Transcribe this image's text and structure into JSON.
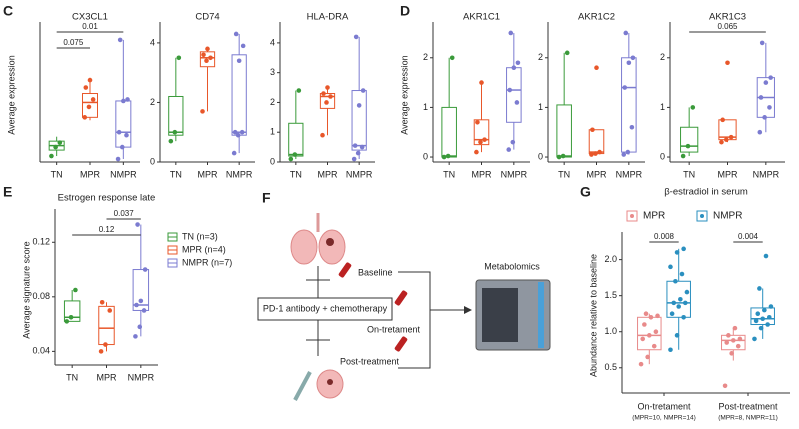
{
  "chart_data": [
    {
      "type": "box",
      "panel": "C",
      "title": "CX3CL1",
      "ylabel": "Average expression",
      "categories": [
        "TN",
        "MPR",
        "NMPR"
      ],
      "colors": [
        "#3a9a3a",
        "#e8572a",
        "#7b7bd0"
      ],
      "ylim": [
        0,
        0.9
      ],
      "boxes": [
        {
          "min": 0.04,
          "q1": 0.08,
          "median": 0.11,
          "q3": 0.14,
          "max": 0.17,
          "points": [
            0.04,
            0.1,
            0.13
          ]
        },
        {
          "min": 0.28,
          "q1": 0.3,
          "median": 0.4,
          "q3": 0.46,
          "max": 0.55,
          "points": [
            0.3,
            0.37,
            0.42,
            0.5,
            0.55
          ]
        },
        {
          "min": 0.02,
          "q1": 0.1,
          "median": 0.2,
          "q3": 0.41,
          "max": 0.82,
          "points": [
            0.02,
            0.1,
            0.18,
            0.2,
            0.41,
            0.42,
            0.82
          ]
        }
      ],
      "brackets": [
        {
          "label": "0.01",
          "from": 0,
          "to": 2
        },
        {
          "label": "0.075",
          "from": 0,
          "to": 1
        }
      ]
    },
    {
      "type": "box",
      "title": "CD74",
      "categories": [
        "TN",
        "MPR",
        "NMPR"
      ],
      "colors": [
        "#3a9a3a",
        "#e8572a",
        "#7b7bd0"
      ],
      "ylim": [
        0,
        4.5
      ],
      "yticks": [
        0,
        2,
        4
      ],
      "boxes": [
        {
          "min": 0.7,
          "q1": 0.9,
          "median": 1.0,
          "q3": 2.2,
          "max": 3.5,
          "points": [
            0.7,
            1.0,
            3.5
          ]
        },
        {
          "min": 1.7,
          "q1": 3.2,
          "median": 3.5,
          "q3": 3.7,
          "max": 3.8,
          "points": [
            1.7,
            3.4,
            3.5,
            3.6,
            3.8
          ]
        },
        {
          "min": 0.3,
          "q1": 0.9,
          "median": 1.0,
          "q3": 3.6,
          "max": 4.3,
          "points": [
            0.3,
            0.9,
            1.0,
            1.0,
            3.4,
            3.9,
            4.3
          ]
        }
      ]
    },
    {
      "type": "box",
      "title": "HLA-DRA",
      "categories": [
        "TN",
        "MPR",
        "NMPR"
      ],
      "colors": [
        "#3a9a3a",
        "#e8572a",
        "#7b7bd0"
      ],
      "ylim": [
        0,
        4.5
      ],
      "yticks": [
        0,
        1,
        2,
        3,
        4
      ],
      "boxes": [
        {
          "min": 0.1,
          "q1": 0.2,
          "median": 0.25,
          "q3": 1.3,
          "max": 2.4,
          "points": [
            0.1,
            0.25,
            2.4
          ]
        },
        {
          "min": 0.9,
          "q1": 1.8,
          "median": 2.2,
          "q3": 2.3,
          "max": 2.5,
          "points": [
            0.9,
            2.0,
            2.2,
            2.3,
            2.5
          ]
        },
        {
          "min": 0.1,
          "q1": 0.4,
          "median": 0.55,
          "q3": 2.4,
          "max": 4.2,
          "points": [
            0.1,
            0.3,
            0.5,
            0.55,
            1.9,
            2.4,
            4.2
          ]
        }
      ]
    },
    {
      "type": "box",
      "panel": "D",
      "title": "AKR1C1",
      "ylabel": "Average expression",
      "categories": [
        "TN",
        "MPR",
        "NMPR"
      ],
      "colors": [
        "#3a9a3a",
        "#e8572a",
        "#7b7bd0"
      ],
      "ylim": [
        -0.1,
        2.6
      ],
      "yticks": [
        0,
        1,
        2
      ],
      "boxes": [
        {
          "min": 0,
          "q1": 0,
          "median": 0.02,
          "q3": 1.0,
          "max": 2.0,
          "points": [
            0,
            0.02,
            2.0
          ]
        },
        {
          "min": 0.1,
          "q1": 0.25,
          "median": 0.35,
          "q3": 0.75,
          "max": 1.5,
          "points": [
            0.1,
            0.3,
            0.35,
            0.7,
            1.5
          ]
        },
        {
          "min": 0.15,
          "q1": 0.7,
          "median": 1.35,
          "q3": 1.8,
          "max": 2.5,
          "points": [
            0.15,
            0.3,
            1.1,
            1.35,
            1.8,
            1.9,
            2.5
          ]
        }
      ]
    },
    {
      "type": "box",
      "title": "AKR1C2",
      "categories": [
        "TN",
        "MPR",
        "NMPR"
      ],
      "colors": [
        "#3a9a3a",
        "#e8572a",
        "#7b7bd0"
      ],
      "ylim": [
        -0.1,
        2.6
      ],
      "yticks": [
        0,
        1,
        2
      ],
      "boxes": [
        {
          "min": 0,
          "q1": 0,
          "median": 0.02,
          "q3": 1.05,
          "max": 2.1,
          "points": [
            0,
            0.02,
            2.1
          ]
        },
        {
          "min": 0.05,
          "q1": 0.07,
          "median": 0.1,
          "q3": 0.55,
          "max": 0.55,
          "points": [
            0.05,
            0.07,
            0.1,
            0.55,
            1.8
          ]
        },
        {
          "min": 0.05,
          "q1": 0.1,
          "median": 1.4,
          "q3": 2.0,
          "max": 2.5,
          "points": [
            0.05,
            0.1,
            0.6,
            1.4,
            1.9,
            2.0,
            2.5
          ]
        }
      ]
    },
    {
      "type": "box",
      "title": "AKR1C3",
      "categories": [
        "TN",
        "MPR",
        "NMPR"
      ],
      "colors": [
        "#3a9a3a",
        "#e8572a",
        "#7b7bd0"
      ],
      "ylim": [
        -0.1,
        2.6
      ],
      "yticks": [
        0,
        1,
        2
      ],
      "boxes": [
        {
          "min": 0.02,
          "q1": 0.1,
          "median": 0.22,
          "q3": 0.6,
          "max": 1.0,
          "points": [
            0.02,
            0.22,
            1.0
          ]
        },
        {
          "min": 0.3,
          "q1": 0.35,
          "median": 0.4,
          "q3": 0.75,
          "max": 0.75,
          "points": [
            0.3,
            0.35,
            0.4,
            0.75,
            1.9
          ]
        },
        {
          "min": 0.5,
          "q1": 0.8,
          "median": 1.2,
          "q3": 1.6,
          "max": 2.3,
          "points": [
            0.5,
            0.8,
            1.0,
            1.2,
            1.5,
            1.6,
            2.3
          ]
        }
      ],
      "brackets": [
        {
          "label": "0.065",
          "from": 0,
          "to": 2
        }
      ]
    },
    {
      "type": "box",
      "panel": "E",
      "title": "Estrogen response late",
      "ylabel": "Average signature score",
      "categories": [
        "TN",
        "MPR",
        "NMPR"
      ],
      "colors": [
        "#3a9a3a",
        "#e8572a",
        "#7b7bd0"
      ],
      "ylim": [
        0.03,
        0.14
      ],
      "yticks": [
        0.04,
        0.08,
        0.12
      ],
      "legend": [
        "TN (n=3)",
        "MPR (n=4)",
        "NMPR (n=7)"
      ],
      "boxes": [
        {
          "min": 0.062,
          "q1": 0.062,
          "median": 0.065,
          "q3": 0.077,
          "max": 0.085,
          "points": [
            0.062,
            0.065,
            0.085
          ]
        },
        {
          "min": 0.04,
          "q1": 0.045,
          "median": 0.057,
          "q3": 0.073,
          "max": 0.076,
          "points": [
            0.04,
            0.045,
            0.07,
            0.076
          ]
        },
        {
          "min": 0.051,
          "q1": 0.07,
          "median": 0.074,
          "q3": 0.1,
          "max": 0.133,
          "points": [
            0.051,
            0.058,
            0.07,
            0.074,
            0.077,
            0.1,
            0.133
          ]
        }
      ],
      "brackets": [
        {
          "label": "0.037",
          "from": 1,
          "to": 2
        },
        {
          "label": "0.12",
          "from": 0,
          "to": 2
        }
      ]
    },
    {
      "type": "grouped-box",
      "panel": "G",
      "title": "β-estradiol in serum",
      "ylabel": "Abundance relative to baseline",
      "categories": [
        "On-tretament",
        "Post-treatment"
      ],
      "category_notes": [
        "(MPR=10, NMPR=14)",
        "(MPR=8, NMPR=11)"
      ],
      "ylim": [
        0.15,
        2.3
      ],
      "yticks": [
        0.5,
        {
          "value": 1,
          "label": "1.0"
        },
        1.5,
        {
          "value": 2,
          "label": "2.0"
        }
      ],
      "series": [
        {
          "name": "MPR",
          "color": "#e88a8a",
          "boxes": [
            {
              "min": 0.55,
              "q1": 0.75,
              "median": 0.95,
              "q3": 1.2,
              "max": 1.25,
              "points": [
                0.55,
                0.65,
                0.8,
                0.9,
                0.95,
                1.0,
                1.1,
                1.2,
                1.22,
                1.25
              ]
            },
            {
              "min": 0.6,
              "q1": 0.75,
              "median": 0.88,
              "q3": 0.95,
              "max": 1.05,
              "points": [
                0.25,
                0.7,
                0.8,
                0.85,
                0.88,
                0.9,
                0.95,
                1.05
              ]
            }
          ]
        },
        {
          "name": "NMPR",
          "color": "#2a8fbf",
          "boxes": [
            {
              "min": 0.75,
              "q1": 1.2,
              "median": 1.4,
              "q3": 1.7,
              "max": 2.15,
              "points": [
                0.75,
                0.95,
                1.2,
                1.25,
                1.35,
                1.4,
                1.4,
                1.45,
                1.55,
                1.7,
                1.8,
                1.9,
                2.1,
                2.15
              ]
            },
            {
              "min": 0.9,
              "q1": 1.1,
              "median": 1.18,
              "q3": 1.33,
              "max": 1.6,
              "points": [
                0.9,
                1.05,
                1.1,
                1.15,
                1.18,
                1.2,
                1.25,
                1.3,
                1.35,
                1.6,
                2.05
              ]
            }
          ]
        }
      ],
      "brackets": [
        {
          "label": "0.008",
          "category": 0
        },
        {
          "label": "0.004",
          "category": 1
        }
      ]
    }
  ],
  "diagram": {
    "panel": "F",
    "baseline": "Baseline",
    "treatment": "PD-1 antibody + chemotherapy",
    "on": "On-tretament",
    "post": "Post-treatment",
    "metabolomics": "Metabolomics"
  }
}
